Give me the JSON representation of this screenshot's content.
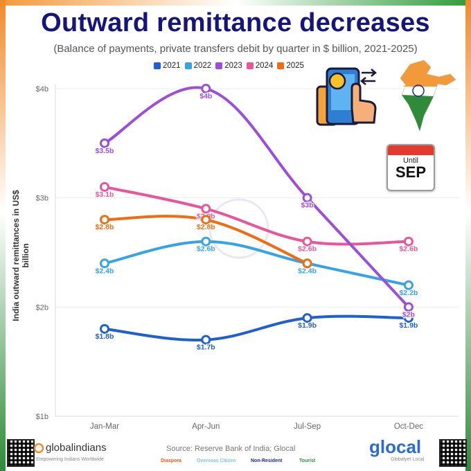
{
  "header": {
    "title": "Outward remittance decreases",
    "subtitle": "(Balance of payments, private transfers debit by quarter in $ billion, 2021-2025)"
  },
  "legend": [
    {
      "label": "2021",
      "color": "#1f5fcf"
    },
    {
      "label": "2022",
      "color": "#36a3e8"
    },
    {
      "label": "2023",
      "color": "#9b4fd8"
    },
    {
      "label": "2024",
      "color": "#e8559a"
    },
    {
      "label": "2025",
      "color": "#ef6c12"
    }
  ],
  "badge": {
    "until": "Until",
    "month": "SEP"
  },
  "chart_data": {
    "type": "line",
    "title": "Outward remittance decreases",
    "xlabel": "",
    "ylabel": "India outward remittances in US$ billion",
    "categories": [
      "Jan-Mar",
      "Apr-Jun",
      "Jul-Sep",
      "Oct-Dec"
    ],
    "ylim": [
      1,
      4
    ],
    "yticks": [
      1,
      2,
      3,
      4
    ],
    "ytick_labels": [
      "$1b",
      "$2b",
      "$3b",
      "$4b"
    ],
    "series": [
      {
        "name": "2021",
        "color": "#1f5fcf",
        "values": [
          1.8,
          1.7,
          1.9,
          1.9
        ],
        "labels": [
          "$1.8b",
          "$1.7b",
          "$1.9b",
          "$1.9b"
        ]
      },
      {
        "name": "2022",
        "color": "#36a3e8",
        "values": [
          2.4,
          2.6,
          2.4,
          2.2
        ],
        "labels": [
          "$2.4b",
          "$2.6b",
          "$2.4b",
          "$2.2b"
        ]
      },
      {
        "name": "2023",
        "color": "#9b4fd8",
        "values": [
          3.5,
          4.0,
          3.0,
          2.0
        ],
        "labels": [
          "$3.5b",
          "$4b",
          "$3b",
          "$2b"
        ]
      },
      {
        "name": "2024",
        "color": "#e8559a",
        "values": [
          3.1,
          2.9,
          2.6,
          2.6
        ],
        "labels": [
          "$3.1b",
          "$2.9b",
          "$2.6b",
          "$2.6b"
        ]
      },
      {
        "name": "2025",
        "color": "#ef6c12",
        "values": [
          2.8,
          2.8,
          2.4,
          null
        ],
        "labels": [
          "$2.8b",
          "$2.8b",
          "",
          ""
        ]
      }
    ]
  },
  "footer": {
    "source": "Source: Reserve Bank of India; Glocal",
    "brand_left": "globalindians",
    "brand_left_sub": "Empowering Indians Worldwide",
    "brand_right": "glocal",
    "brand_right_sub": "Globalyet Local",
    "tags": [
      "Diaspora",
      "Overseas Citizen",
      "Non-Resident",
      "Tourist"
    ]
  }
}
